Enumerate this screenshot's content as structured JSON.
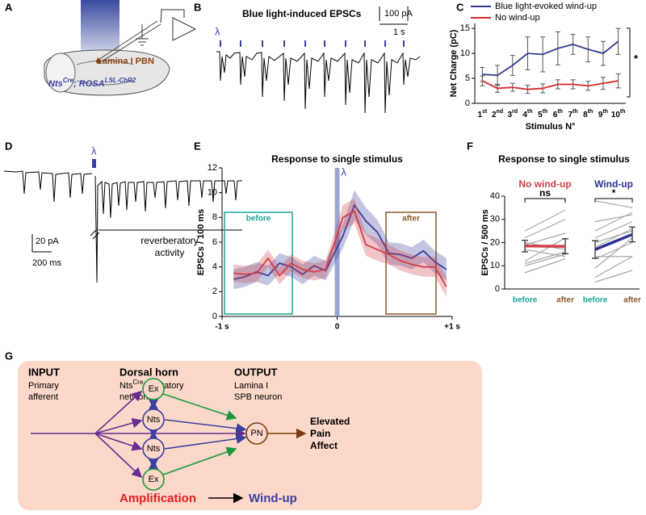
{
  "panel_letters": [
    "A",
    "B",
    "C",
    "D",
    "E",
    "F",
    "G"
  ],
  "panel_a": {
    "region": "Lamina I PBN",
    "genotype": [
      "Nts",
      "Cre",
      "; ROSA",
      "LSL-ChR2"
    ]
  },
  "panel_b": {
    "title": "Blue light-induced EPSCs",
    "scale_current": "100 pA",
    "scale_time": "1 s",
    "stimulus": "λ"
  },
  "panel_d": {
    "stimulus": "λ",
    "scale_current": "20 pA",
    "scale_time": "200 ms",
    "label": [
      "reverberatory",
      "activity"
    ]
  },
  "chart_data": [
    {
      "type": "line",
      "categories": [
        "1",
        "2",
        "3",
        "4",
        "5",
        "6",
        "7",
        "8",
        "9",
        "10"
      ],
      "category_suffixes": [
        "st",
        "nd",
        "rd",
        "th",
        "th",
        "th",
        "th",
        "th",
        "th",
        "th"
      ],
      "xlabel": "Stimulus N°",
      "ylabel": "Net Charge (pC)",
      "ylim": [
        0,
        16
      ],
      "yticks": [
        0,
        5,
        10,
        15
      ],
      "error_style": "bars",
      "legend": "top",
      "annotation": "*",
      "series": [
        {
          "name": "Blue light-evoked wind-up",
          "color": "#2e3a8c",
          "values": [
            5.8,
            5.6,
            7.6,
            10,
            9.8,
            11,
            11.8,
            10.8,
            10,
            12.4
          ],
          "errors": [
            1.4,
            2,
            2,
            3.3,
            3.5,
            3.3,
            2,
            2.5,
            2.4,
            2.6
          ]
        },
        {
          "name": "No wind-up",
          "color": "#d62a2a",
          "values": [
            4.5,
            3,
            3.2,
            2.8,
            3,
            3.8,
            3.8,
            3.5,
            4,
            4.5
          ],
          "errors": [
            1,
            0.8,
            0.8,
            0.8,
            0.9,
            0.9,
            0.9,
            0.9,
            1.2,
            1.4
          ]
        }
      ]
    },
    {
      "type": "line",
      "title": "Response to single stimulus",
      "ylabel": "EPSCs / 100 ms",
      "x": [
        -0.9,
        -0.8,
        -0.7,
        -0.6,
        -0.5,
        -0.4,
        -0.3,
        -0.2,
        -0.1,
        0.05,
        0.15,
        0.25,
        0.35,
        0.45,
        0.55,
        0.65,
        0.75,
        0.85,
        0.95
      ],
      "xlim": [
        -1,
        1
      ],
      "xticks": [
        {
          "value": -1,
          "label": "-1 s"
        },
        0,
        {
          "value": 1,
          "label": "+1 s"
        }
      ],
      "ylim": [
        0,
        12
      ],
      "yticks": [
        0,
        2,
        4,
        6,
        8,
        10,
        12
      ],
      "error_style": "band",
      "stimulus": "λ",
      "stimulus_color": "#8a96d0",
      "windows": [
        {
          "label": "before",
          "color": "#1aa39a"
        },
        {
          "label": "after",
          "color": "#8b5a2b"
        }
      ],
      "series": [
        {
          "color": "#3b3f9a",
          "values": [
            3,
            3.2,
            3.6,
            3.3,
            4.3,
            4,
            3.4,
            4.1,
            3.7,
            6.5,
            9,
            7.7,
            6.8,
            5.1,
            5,
            4.7,
            5.3,
            4.4,
            3.8
          ],
          "errors": [
            0.8,
            0.8,
            0.8,
            0.8,
            0.8,
            0.8,
            0.8,
            0.8,
            0.8,
            1,
            1.2,
            1.1,
            1,
            0.9,
            0.9,
            0.9,
            0.9,
            0.9,
            0.9
          ]
        },
        {
          "color": "#d1404a",
          "values": [
            3.5,
            3.4,
            3.5,
            4.7,
            3.3,
            4.3,
            3.8,
            3.6,
            3.8,
            8,
            8.5,
            5.8,
            5.4,
            5,
            4.5,
            4.2,
            4,
            4,
            2.4
          ],
          "errors": [
            0.7,
            0.7,
            0.7,
            0.7,
            0.7,
            0.7,
            0.7,
            0.7,
            0.7,
            1,
            1,
            0.9,
            0.9,
            0.8,
            0.8,
            0.8,
            0.8,
            0.8,
            0.8
          ]
        }
      ]
    },
    {
      "type": "paired",
      "title": "Response to single stimulus",
      "ylabel": "EPSCs / 500 ms",
      "ylim": [
        0,
        40
      ],
      "yticks": [
        0,
        10,
        20,
        30,
        40
      ],
      "categories": [
        "before",
        "after"
      ],
      "category_colors": [
        "#1aa39a",
        "#8b5a2b"
      ],
      "subject_color": "#a8a8a8",
      "groups": [
        {
          "name": "No wind-up",
          "color": "#d1404a",
          "annotation": "ns",
          "means": [
            18.5,
            18.4
          ],
          "errors": [
            2.5,
            3.2
          ],
          "subjects": [
            [
              25,
              34
            ],
            [
              22,
              30
            ],
            [
              20,
              17
            ],
            [
              19,
              24
            ],
            [
              17,
              14
            ],
            [
              12,
              22
            ],
            [
              11,
              16
            ],
            [
              10,
              15
            ],
            [
              7,
              13
            ]
          ]
        },
        {
          "name": "Wind-up",
          "color": "#2e3192",
          "annotation": "*",
          "means": [
            17,
            23.5
          ],
          "errors": [
            3.8,
            3.2
          ],
          "subjects": [
            [
              38,
              35
            ],
            [
              29,
              32
            ],
            [
              25,
              33
            ],
            [
              22,
              29
            ],
            [
              20,
              25
            ],
            [
              18,
              26
            ],
            [
              14,
              14
            ],
            [
              13,
              20
            ],
            [
              9,
              22
            ],
            [
              5,
              14
            ],
            [
              3,
              8
            ]
          ]
        }
      ]
    }
  ],
  "diagram": {
    "input": {
      "title": "INPUT",
      "lines": [
        "Primary",
        "afferent"
      ]
    },
    "dorsal": {
      "title": "Dorsal horn",
      "name": "Nts",
      "sup": "Cre",
      "rest": " excitatory",
      "line2": "network"
    },
    "output": {
      "title": "OUTPUT",
      "lines": [
        "Lamina I",
        "SPB neuron"
      ]
    },
    "nodes": [
      "Ex",
      "Nts",
      "Nts",
      "Ex",
      "PN"
    ],
    "effect": [
      "Elevated",
      "Pain",
      "Affect"
    ],
    "amplification": "Amplification",
    "windup": "Wind-up"
  }
}
